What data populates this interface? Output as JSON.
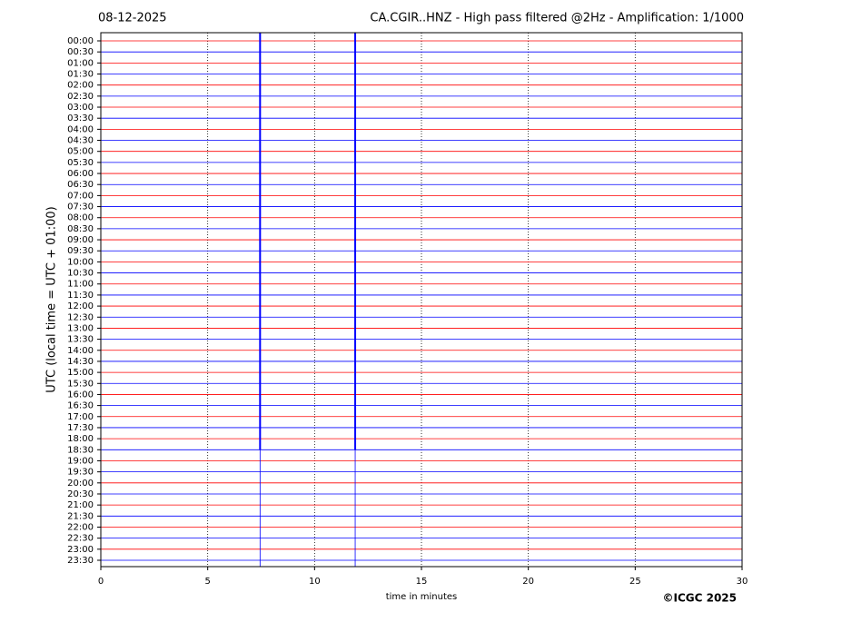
{
  "chart_data": {
    "type": "helicorder",
    "date": "08-12-2025",
    "title": "CA.CGIR..HNZ - High pass filtered @2Hz - Amplification: 1/1000",
    "x_label": "time in minutes",
    "y_label": "UTC (local time = UTC + 01:00)",
    "copyright": "©ICGC 2025",
    "xlim": [
      0,
      30
    ],
    "xticks": [
      0,
      5,
      10,
      15,
      20,
      25,
      30
    ],
    "grid": true,
    "colors": [
      "#ff0000",
      "#0000ff"
    ],
    "categories": [
      "00:00",
      "00:30",
      "01:00",
      "01:30",
      "02:00",
      "02:30",
      "03:00",
      "03:30",
      "04:00",
      "04:30",
      "05:00",
      "05:30",
      "06:00",
      "06:30",
      "07:00",
      "07:30",
      "08:00",
      "08:30",
      "09:00",
      "09:30",
      "10:00",
      "10:30",
      "11:00",
      "11:30",
      "12:00",
      "12:30",
      "13:00",
      "13:30",
      "14:00",
      "14:30",
      "15:00",
      "15:30",
      "16:00",
      "16:30",
      "17:00",
      "17:30",
      "18:00",
      "18:30",
      "19:00",
      "19:30",
      "20:00",
      "20:30",
      "21:00",
      "21:30",
      "22:00",
      "22:30",
      "23:00",
      "23:30"
    ],
    "spikes": [
      {
        "x": 7.45,
        "rows": [
          0,
          37
        ]
      },
      {
        "x": 11.9,
        "rows": [
          0,
          37
        ]
      }
    ]
  }
}
